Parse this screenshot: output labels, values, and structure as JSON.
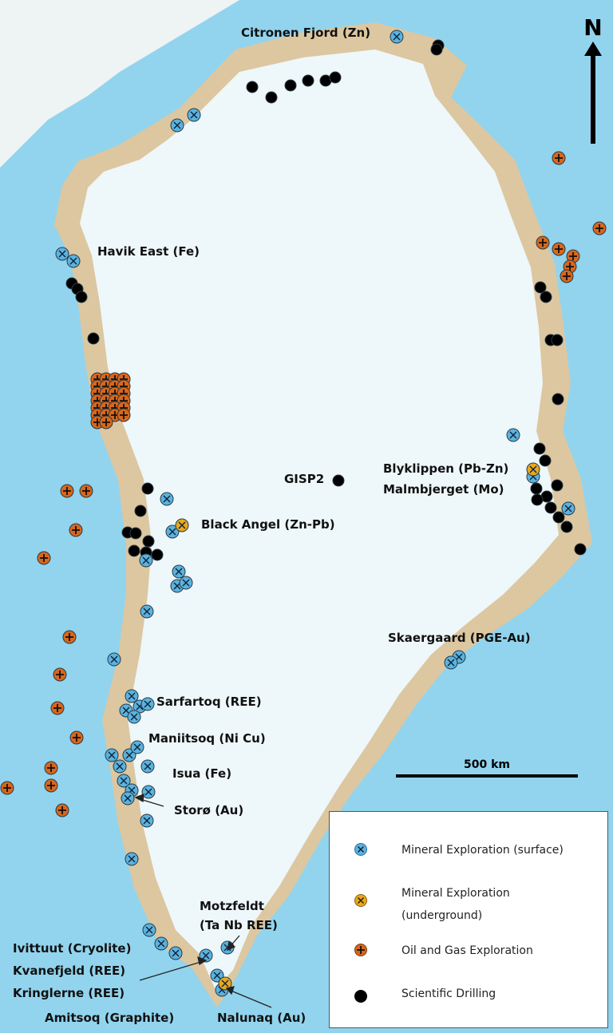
{
  "north_label": "N",
  "scale_label": "500 km",
  "colors": {
    "sea": "#92d4ee",
    "ice": "#eef7fa",
    "coast": "#dcc7a0",
    "surface": "#5ab3e0",
    "underground": "#e8a81e",
    "oil_gas": "#d9661a",
    "drilling": "#000000"
  },
  "labels": {
    "citronen": "Citronen Fjord (Zn)",
    "havik": "Havik East (Fe)",
    "gisp2": "GISP2",
    "blyklippen": "Blyklippen (Pb-Zn)",
    "malmbjerget": "Malmbjerget (Mo)",
    "black_angel": "Black Angel (Zn-Pb)",
    "skaergaard": "Skaergaard (PGE-Au)",
    "sarfartoq": "Sarfartoq (REE)",
    "maniitsoq": "Maniitsoq (Ni Cu)",
    "isua": "Isua (Fe)",
    "storo": "Storø (Au)",
    "motzfeldt_1": "Motzfeldt",
    "motzfeldt_2": "(Ta Nb REE)",
    "ivittuut": "Ivittuut (Cryolite)",
    "kvanefjeld": "Kvanefjeld (REE)",
    "kringlerne": "Kringlerne (REE)",
    "amitsoq": "Amitsoq (Graphite)",
    "nalunaq": "Nalunaq (Au)"
  },
  "legend": [
    {
      "icon": "mineral-surface-icon",
      "label": "Mineral Exploration (surface)"
    },
    {
      "icon": "mineral-underground-icon",
      "label": "Mineral Exploration",
      "label2": "(underground)"
    },
    {
      "icon": "oil-gas-icon",
      "label": "Oil and Gas Exploration"
    },
    {
      "icon": "drilling-icon",
      "label": "Scientific Drilling"
    }
  ]
}
